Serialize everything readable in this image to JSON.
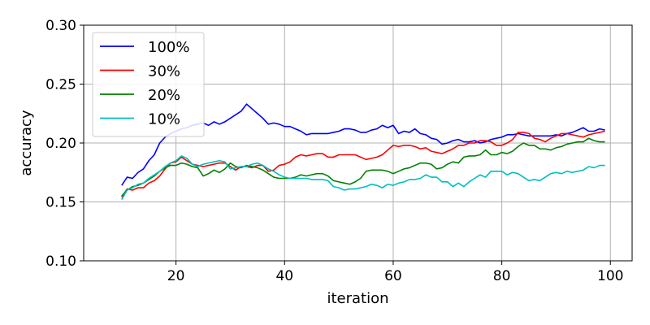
{
  "chart_data": {
    "type": "line",
    "xlabel": "iteration",
    "ylabel": "accuracy",
    "xlim": [
      3,
      104
    ],
    "ylim": [
      0.1,
      0.3
    ],
    "xticks": [
      20,
      40,
      60,
      80,
      100
    ],
    "xtick_labels": [
      "20",
      "40",
      "60",
      "80",
      "100"
    ],
    "yticks": [
      0.1,
      0.15,
      0.2,
      0.25,
      0.3
    ],
    "ytick_labels": [
      "0.10",
      "0.15",
      "0.20",
      "0.25",
      "0.30"
    ],
    "grid": true,
    "legend_position": "top-left",
    "x": [
      10,
      11,
      12,
      13,
      14,
      15,
      16,
      17,
      18,
      19,
      20,
      21,
      22,
      23,
      24,
      25,
      26,
      27,
      28,
      29,
      30,
      31,
      32,
      33,
      34,
      35,
      36,
      37,
      38,
      39,
      40,
      41,
      42,
      43,
      44,
      45,
      46,
      47,
      48,
      49,
      50,
      51,
      52,
      53,
      54,
      55,
      56,
      57,
      58,
      59,
      60,
      61,
      62,
      63,
      64,
      65,
      66,
      67,
      68,
      69,
      70,
      71,
      72,
      73,
      74,
      75,
      76,
      77,
      78,
      79,
      80,
      81,
      82,
      83,
      84,
      85,
      86,
      87,
      88,
      89,
      90,
      91,
      92,
      93,
      94,
      95,
      96,
      97,
      98,
      99
    ],
    "series": [
      {
        "name": "100%",
        "color": "#0000ff",
        "values": [
          0.164,
          0.171,
          0.17,
          0.175,
          0.178,
          0.185,
          0.19,
          0.2,
          0.205,
          0.208,
          0.21,
          0.212,
          0.213,
          0.215,
          0.216,
          0.217,
          0.215,
          0.218,
          0.216,
          0.218,
          0.221,
          0.224,
          0.227,
          0.233,
          0.229,
          0.225,
          0.221,
          0.216,
          0.217,
          0.216,
          0.214,
          0.214,
          0.212,
          0.21,
          0.207,
          0.208,
          0.208,
          0.208,
          0.208,
          0.209,
          0.21,
          0.212,
          0.212,
          0.211,
          0.209,
          0.209,
          0.211,
          0.212,
          0.215,
          0.213,
          0.215,
          0.208,
          0.21,
          0.209,
          0.212,
          0.208,
          0.207,
          0.204,
          0.203,
          0.199,
          0.2,
          0.202,
          0.203,
          0.201,
          0.201,
          0.202,
          0.2,
          0.201,
          0.203,
          0.204,
          0.205,
          0.207,
          0.207,
          0.208,
          0.207,
          0.206,
          0.206,
          0.206,
          0.206,
          0.206,
          0.207,
          0.206,
          0.208,
          0.209,
          0.211,
          0.213,
          0.21,
          0.21,
          0.212,
          0.211
        ]
      },
      {
        "name": "30%",
        "color": "#ff0000",
        "values": [
          0.154,
          0.161,
          0.16,
          0.162,
          0.162,
          0.166,
          0.168,
          0.172,
          0.178,
          0.183,
          0.184,
          0.188,
          0.185,
          0.182,
          0.181,
          0.18,
          0.181,
          0.182,
          0.183,
          0.183,
          0.18,
          0.177,
          0.18,
          0.18,
          0.179,
          0.181,
          0.181,
          0.176,
          0.177,
          0.181,
          0.182,
          0.184,
          0.188,
          0.19,
          0.189,
          0.19,
          0.191,
          0.191,
          0.188,
          0.188,
          0.19,
          0.19,
          0.19,
          0.19,
          0.188,
          0.186,
          0.187,
          0.188,
          0.19,
          0.194,
          0.198,
          0.197,
          0.198,
          0.198,
          0.197,
          0.195,
          0.196,
          0.193,
          0.192,
          0.191,
          0.193,
          0.195,
          0.198,
          0.198,
          0.2,
          0.2,
          0.202,
          0.202,
          0.201,
          0.198,
          0.198,
          0.2,
          0.203,
          0.209,
          0.209,
          0.208,
          0.204,
          0.203,
          0.201,
          0.204,
          0.206,
          0.208,
          0.208,
          0.207,
          0.206,
          0.205,
          0.207,
          0.208,
          0.209,
          0.21
        ]
      },
      {
        "name": "20%",
        "color": "#008000",
        "values": [
          0.155,
          0.16,
          0.163,
          0.164,
          0.166,
          0.169,
          0.172,
          0.176,
          0.179,
          0.181,
          0.181,
          0.183,
          0.182,
          0.18,
          0.179,
          0.172,
          0.174,
          0.177,
          0.175,
          0.178,
          0.183,
          0.18,
          0.179,
          0.181,
          0.18,
          0.179,
          0.177,
          0.174,
          0.171,
          0.17,
          0.17,
          0.17,
          0.171,
          0.173,
          0.172,
          0.173,
          0.174,
          0.174,
          0.172,
          0.168,
          0.167,
          0.166,
          0.165,
          0.167,
          0.17,
          0.176,
          0.177,
          0.177,
          0.177,
          0.176,
          0.174,
          0.176,
          0.178,
          0.179,
          0.181,
          0.183,
          0.183,
          0.182,
          0.178,
          0.179,
          0.182,
          0.184,
          0.183,
          0.188,
          0.189,
          0.189,
          0.19,
          0.194,
          0.19,
          0.19,
          0.192,
          0.191,
          0.193,
          0.197,
          0.2,
          0.198,
          0.198,
          0.195,
          0.195,
          0.194,
          0.196,
          0.197,
          0.199,
          0.2,
          0.201,
          0.201,
          0.204,
          0.202,
          0.201,
          0.201
        ]
      },
      {
        "name": "10%",
        "color": "#00bfbf",
        "values": [
          0.152,
          0.16,
          0.162,
          0.165,
          0.166,
          0.17,
          0.173,
          0.176,
          0.18,
          0.183,
          0.185,
          0.189,
          0.187,
          0.182,
          0.18,
          0.182,
          0.183,
          0.184,
          0.185,
          0.184,
          0.178,
          0.179,
          0.18,
          0.18,
          0.182,
          0.183,
          0.181,
          0.178,
          0.176,
          0.173,
          0.171,
          0.17,
          0.17,
          0.17,
          0.17,
          0.169,
          0.169,
          0.169,
          0.168,
          0.163,
          0.162,
          0.16,
          0.161,
          0.161,
          0.162,
          0.163,
          0.165,
          0.164,
          0.162,
          0.165,
          0.164,
          0.166,
          0.167,
          0.169,
          0.169,
          0.17,
          0.173,
          0.171,
          0.171,
          0.167,
          0.167,
          0.163,
          0.166,
          0.163,
          0.167,
          0.17,
          0.173,
          0.171,
          0.176,
          0.176,
          0.176,
          0.173,
          0.175,
          0.174,
          0.171,
          0.168,
          0.169,
          0.168,
          0.171,
          0.174,
          0.175,
          0.174,
          0.176,
          0.175,
          0.176,
          0.177,
          0.18,
          0.179,
          0.181,
          0.181
        ]
      }
    ]
  }
}
